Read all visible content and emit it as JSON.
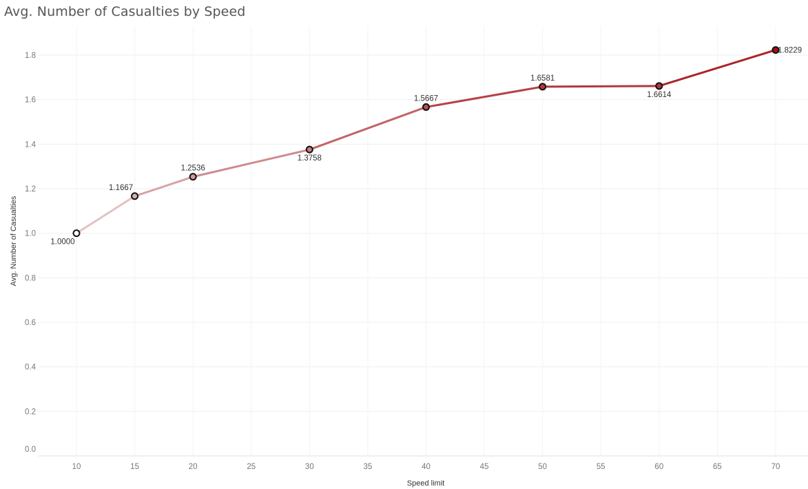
{
  "title": "Avg. Number of Casualties by Speed",
  "chart_data": {
    "type": "line",
    "title": "Avg. Number of Casualties by Speed",
    "xlabel": "Speed limit",
    "ylabel": "Avg. Number of Casualties",
    "x_ticks": [
      "10",
      "15",
      "20",
      "25",
      "30",
      "35",
      "40",
      "45",
      "50",
      "55",
      "60",
      "65",
      "70"
    ],
    "y_ticks": [
      "0.0",
      "0.2",
      "0.4",
      "0.6",
      "0.8",
      "1.0",
      "1.2",
      "1.4",
      "1.6",
      "1.8"
    ],
    "xlim": [
      5,
      73
    ],
    "ylim": [
      0,
      1.9
    ],
    "grid": true,
    "series": [
      {
        "x": [
          10,
          15,
          20,
          30,
          40,
          50,
          60,
          70
        ],
        "values": [
          1.0,
          1.1667,
          1.2536,
          1.3758,
          1.5667,
          1.6581,
          1.6614,
          1.8229
        ],
        "labels": [
          "1.0000",
          "1.1667",
          "1.2536",
          "1.3758",
          "1.5667",
          "1.6581",
          "1.6614",
          "1.8229"
        ],
        "label_positions": [
          "below",
          "above",
          "above",
          "below",
          "above",
          "above",
          "below",
          "right"
        ]
      }
    ],
    "color_scale": [
      "#e8d6d6",
      "#a50f15"
    ]
  }
}
